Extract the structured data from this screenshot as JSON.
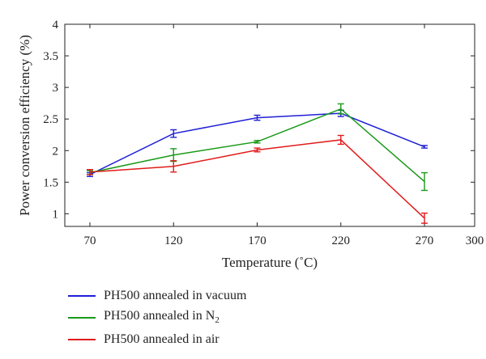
{
  "chart_data": {
    "type": "line",
    "xlabel": "Temperature (˚C)",
    "ylabel": "Power conversion efficiency (%)",
    "xlim": [
      55,
      300
    ],
    "ylim": [
      0.8,
      4
    ],
    "xticks": [
      70,
      120,
      170,
      220,
      270,
      300
    ],
    "yticks": [
      1,
      1.5,
      2,
      2.5,
      3,
      3.5,
      4
    ],
    "ytick_labels": [
      "1",
      "1.5",
      "2",
      "2.5",
      "3",
      "3.5",
      "4"
    ],
    "x": [
      70,
      120,
      170,
      220,
      270
    ],
    "series": [
      {
        "name": "PH500 annealed in vacuum",
        "label_base": "PH500 annealed in vacuum",
        "label_sub": "",
        "color": "#1f1fd6",
        "values": [
          1.62,
          2.27,
          2.52,
          2.59,
          2.06
        ],
        "errors": [
          0.03,
          0.06,
          0.04,
          0.05,
          0.02
        ]
      },
      {
        "name": "PH500 annealed in N2",
        "label_base": "PH500 annealed in N",
        "label_sub": "2",
        "color": "#1a9a1a",
        "values": [
          1.65,
          1.93,
          2.14,
          2.66,
          1.51
        ],
        "errors": [
          0.03,
          0.1,
          0.02,
          0.08,
          0.14
        ]
      },
      {
        "name": "PH500 annealed in air",
        "label_base": "PH500 annealed in air",
        "label_sub": "",
        "color": "#e01b1b",
        "values": [
          1.66,
          1.75,
          2.01,
          2.17,
          0.93
        ],
        "errors": [
          0.04,
          0.09,
          0.03,
          0.07,
          0.08
        ]
      }
    ],
    "grid": false,
    "legend_position": "below"
  }
}
